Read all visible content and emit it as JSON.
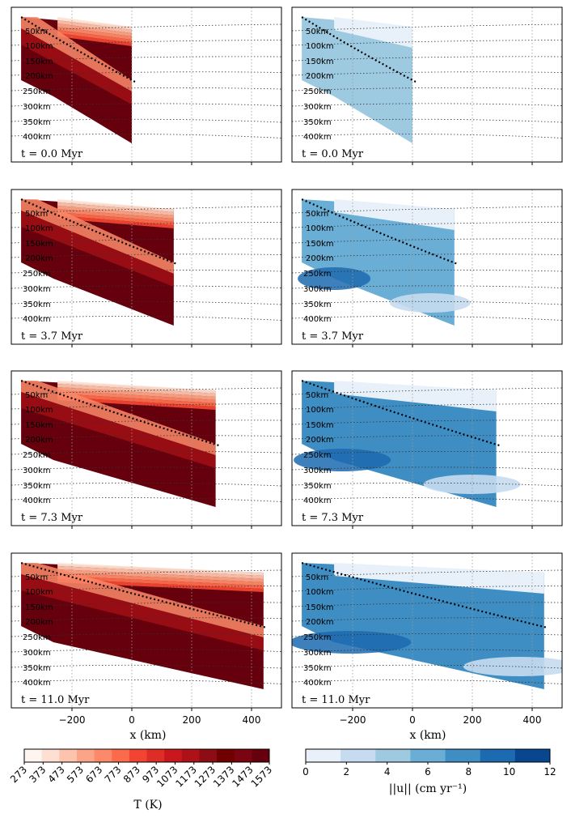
{
  "chart_data": {
    "type": "heatmap",
    "description_panels": "4 time snapshots x 2 fields (temperature, velocity magnitude) of a subduction zone cross-section",
    "times": [
      {
        "label": "t = 0.0 Myr",
        "value_myr": 0.0,
        "slab_extent_x_km": 0
      },
      {
        "label": "t = 3.7 Myr",
        "value_myr": 3.7,
        "slab_extent_x_km": 140
      },
      {
        "label": "t = 7.3 Myr",
        "value_myr": 7.3,
        "slab_extent_x_km": 280
      },
      {
        "label": "t = 11.0 Myr",
        "value_myr": 11.0,
        "slab_extent_x_km": 440
      }
    ],
    "depth_labels": [
      "50km",
      "100km",
      "150km",
      "200km",
      "250km",
      "300km",
      "350km",
      "400km"
    ],
    "depth_values_km": [
      50,
      100,
      150,
      200,
      250,
      300,
      350,
      400
    ],
    "x_axis": {
      "label": "x (km)",
      "ticks": [
        -200,
        0,
        200,
        400
      ],
      "xlim": [
        -400,
        500
      ]
    },
    "temperature": {
      "colorbar_label": "T (K)",
      "ticks": [
        "273",
        "373",
        "473",
        "573",
        "673",
        "773",
        "873",
        "973",
        "1073",
        "1173",
        "1273",
        "1373",
        "1473",
        "1573"
      ],
      "colors": [
        "#fff5f0",
        "#fee0d2",
        "#fcc4ad",
        "#fca487",
        "#fc8a6a",
        "#fb6b4b",
        "#f14432",
        "#de2d26",
        "#c9181d",
        "#ae1117",
        "#8e0c14",
        "#700000",
        "#7a0510",
        "#67000d"
      ]
    },
    "velocity": {
      "colorbar_label": "||u|| (cm yr⁻¹)",
      "ticks": [
        "0",
        "2",
        "4",
        "6",
        "8",
        "10",
        "12"
      ],
      "colors": [
        "#e8f1fa",
        "#c6dbef",
        "#9ecae1",
        "#6aaed6",
        "#3e8ec4",
        "#1c6aaf",
        "#08468f"
      ]
    }
  },
  "labels": {
    "xlabel_left": "x (km)",
    "xlabel_right": "x (km)",
    "cbar_left_title": "T (K)",
    "cbar_right_title": "||u|| (cm yr⁻¹)"
  }
}
